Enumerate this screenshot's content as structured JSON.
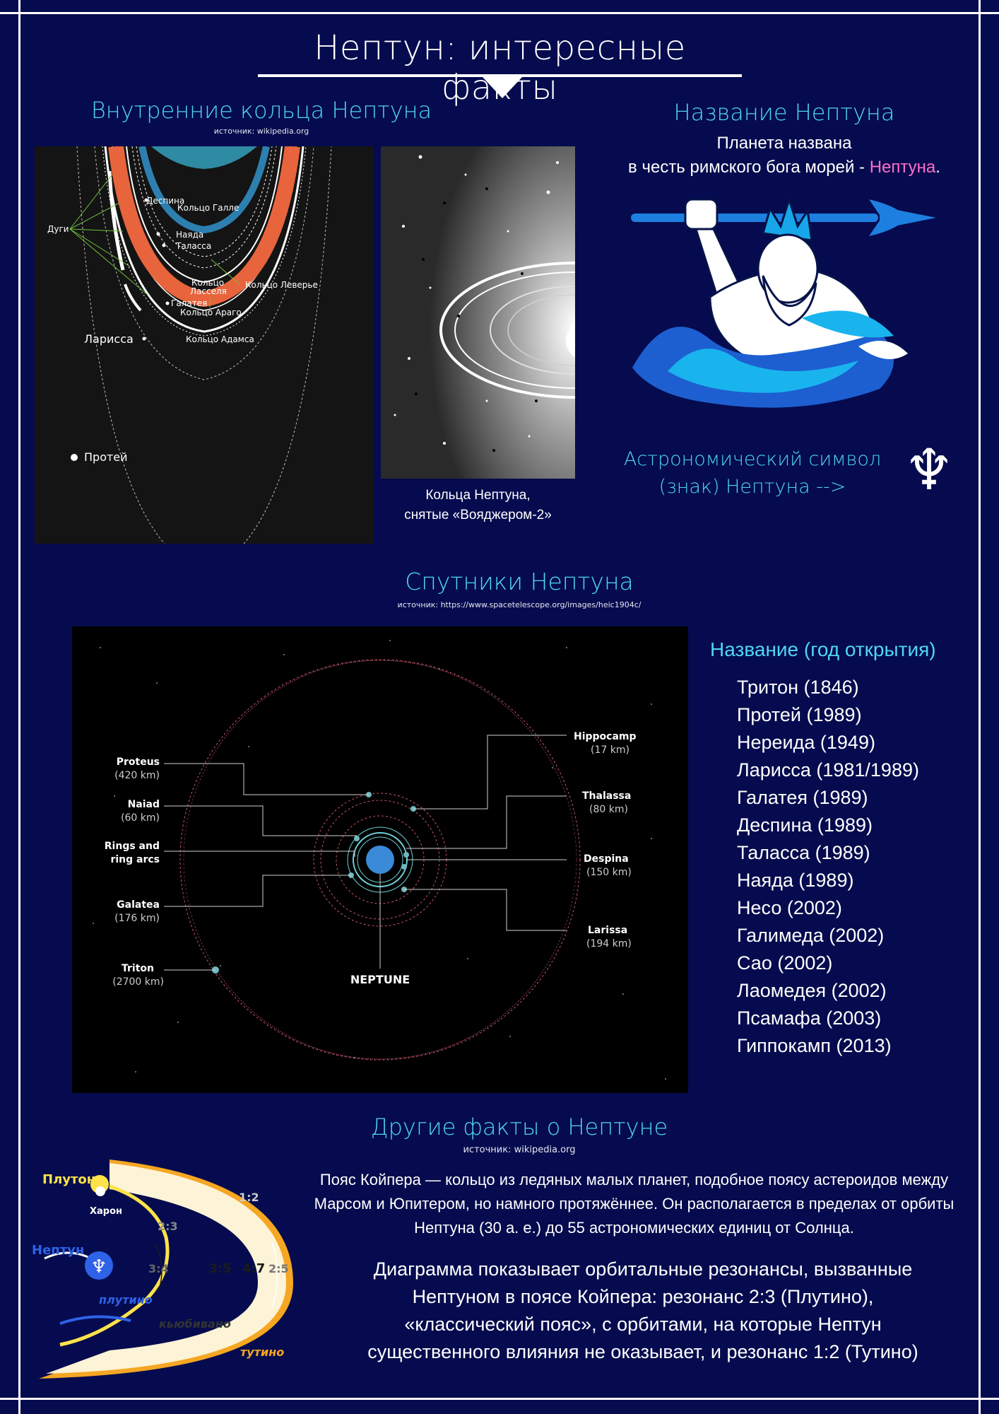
{
  "page": {
    "title": "Нептун: интересные факты"
  },
  "rings": {
    "heading": "Внутренние кольца Нептуна",
    "source": "источник: wikipedia.org",
    "diagram_labels": {
      "arcs": "Дуги",
      "despina": "Деспина",
      "galle": "Кольцо Галле",
      "naiad": "Наяда",
      "thalassa": "Таласса",
      "lassell_1": "Кольцо",
      "lassell_2": "Ласселя",
      "leverrier": "Кольцо Леверье",
      "galatea": "Галатея",
      "arago": "Кольцо Араго",
      "larissa": "Ларисса",
      "adams": "Кольцо Адамса",
      "proteus": "Протей"
    },
    "photo_caption_1": "Кольца Нептуна,",
    "photo_caption_2": "снятые «Вояджером-2»"
  },
  "name_section": {
    "heading": "Название Нептуна",
    "line1": "Планета названа",
    "line2_prefix": "в честь римского бога морей - ",
    "line2_highlight": "Нептуна",
    "line2_suffix": ".",
    "highlight_color": "#ff6fc8",
    "symbol_text_1": "Астрономический символ",
    "symbol_text_2": "(знак) Нептуна -->",
    "symbol_glyph": "♆"
  },
  "moons": {
    "heading": "Спутники Нептуна",
    "source": "источник: https://www.spacetelescope.org/images/heic1904c/",
    "list_heading": "Название (год открытия)",
    "list": [
      "Тритон (1846)",
      "Протей (1989)",
      "Нереида (1949)",
      "Ларисса (1981/1989)",
      "Галатея (1989)",
      "Деспина (1989)",
      "Таласса (1989)",
      "Наяда (1989)",
      "Несо (2002)",
      "Галимеда (2002)",
      "Сао (2002)",
      "Лаомедея (2002)",
      "Псамафа (2003)",
      "Гиппокамп (2013)"
    ],
    "diagram": {
      "proteus": "Proteus",
      "proteus_km": "(420 km)",
      "naiad": "Naiad",
      "naiad_km": "(60 km)",
      "rings_1": "Rings and",
      "rings_2": "ring arcs",
      "galatea": "Galatea",
      "galatea_km": "(176 km)",
      "triton": "Triton",
      "triton_km": "(2700 km)",
      "hippocamp": "Hippocamp",
      "hippocamp_km": "(17 km)",
      "thalassa": "Thalassa",
      "thalassa_km": "(80 km)",
      "despina": "Despina",
      "despina_km": "(150 km)",
      "larissa": "Larissa",
      "larissa_km": "(194 km)",
      "neptune": "NEPTUNE"
    }
  },
  "other": {
    "heading": "Другие факты о Нептуне",
    "source": "источник: wikipedia.org",
    "para1": "Пояс Койпера — кольцо из ледяных малых планет, подобное поясу астероидов между Марсом и Юпитером, но намного протяжённее. Он располагается в пределах от орбиты Нептуна (30 а. е.) до 55 астрономических единиц от Солнца.",
    "para2": "Диаграмма показывает орбитальные резонансы, вызванные Нептуном в поясе Койпера: резонанс 2:3 (Плутино), «классический пояс», с орбитами, на которые Нептун существенного влияния не оказывает, и резонанс 1:2 (Тутино)",
    "kuiper_labels": {
      "pluto": "Плутон",
      "charon": "Харон",
      "neptune": "Нептун",
      "plutino": "плутино",
      "cubewano": "кьюбивано",
      "twotino": "тутино",
      "r12": "1:2",
      "r23": "2:3",
      "r34": "3:4",
      "r35": "3:5",
      "r47": "4:7",
      "r25": "2:5"
    }
  }
}
